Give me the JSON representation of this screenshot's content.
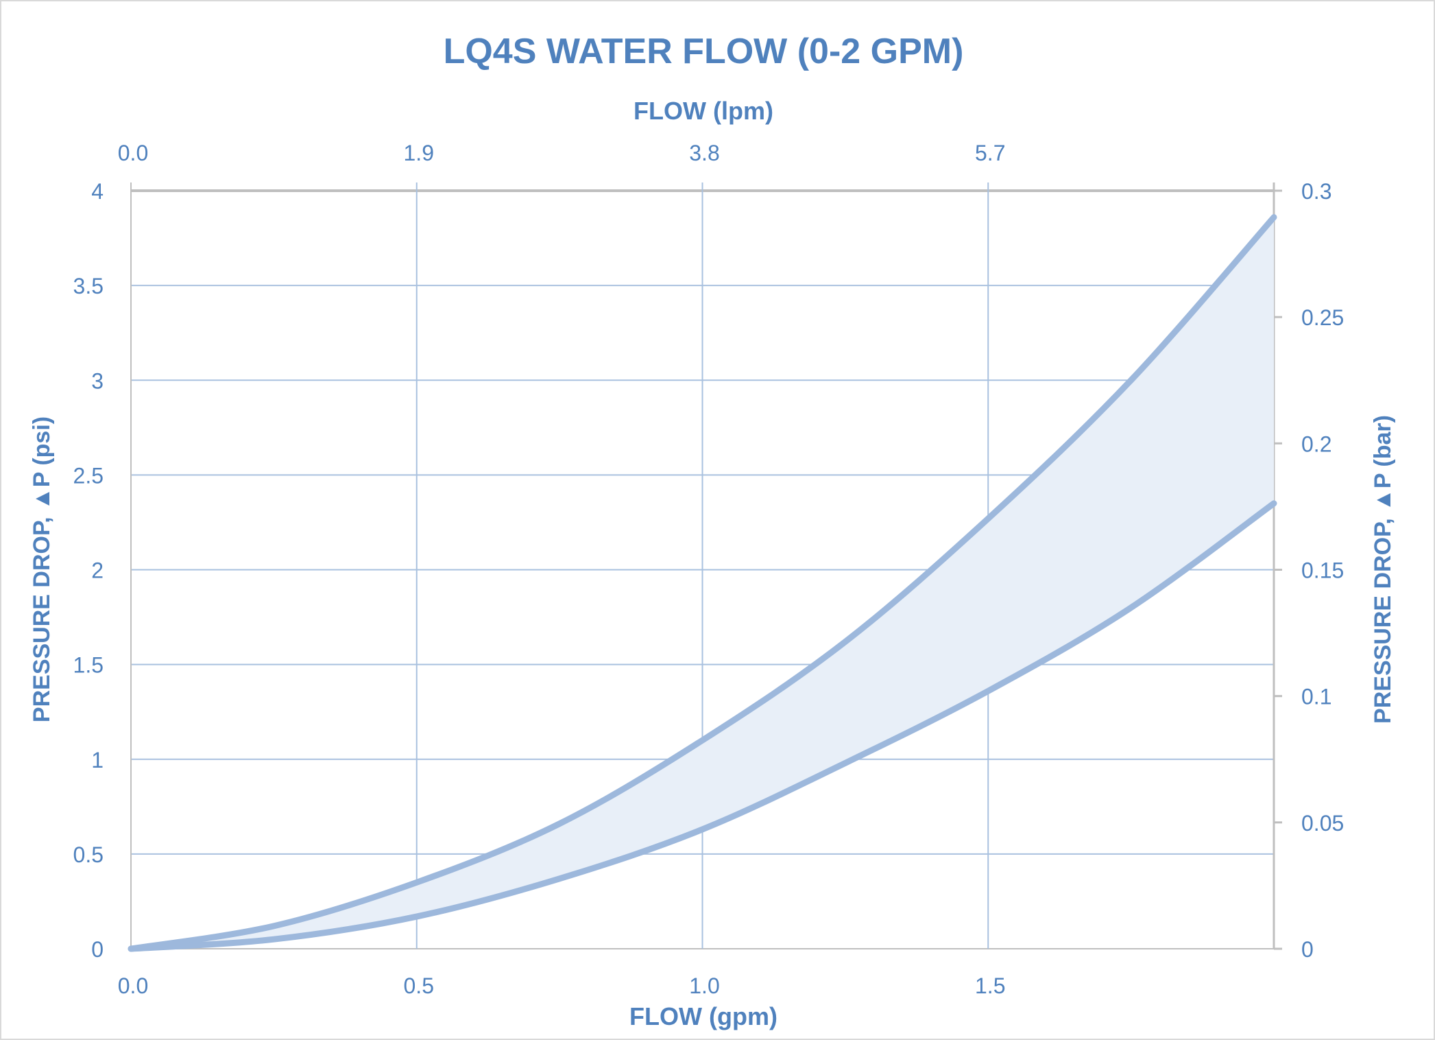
{
  "chart_data": {
    "type": "area",
    "title": "LQ4S WATER FLOW (0-2 GPM)",
    "xlabel": "FLOW (gpm)",
    "x2label": "FLOW (lpm)",
    "ylabel": "PRESSURE DROP, ▲P (psi)",
    "y2label": "PRESSURE DROP, ▲P (bar)",
    "xlim": [
      0,
      2
    ],
    "ylim": [
      0,
      4
    ],
    "y2lim": [
      0,
      0.3
    ],
    "x_ticks": [
      "0.0",
      "0.5",
      "1.0",
      "1.5"
    ],
    "x_tick_values": [
      0,
      0.5,
      1.0,
      1.5
    ],
    "x2_ticks": [
      "0.0",
      "1.9",
      "3.8",
      "5.7"
    ],
    "y_ticks": [
      "0",
      "0.5",
      "1",
      "1.5",
      "2",
      "2.5",
      "3",
      "3.5",
      "4"
    ],
    "y2_ticks": [
      "0",
      "0.05",
      "0.1",
      "0.15",
      "0.2",
      "0.25",
      "0.3"
    ],
    "grid": true,
    "x": [
      0,
      0.25,
      0.5,
      0.75,
      1.0,
      1.25,
      1.5,
      1.75,
      2.0
    ],
    "series": [
      {
        "values": [
          0,
          0.12,
          0.35,
          0.66,
          1.1,
          1.62,
          2.27,
          3.0,
          3.86
        ]
      },
      {
        "values": [
          0,
          0.05,
          0.17,
          0.37,
          0.63,
          0.98,
          1.36,
          1.8,
          2.35
        ]
      }
    ],
    "colors": {
      "text": "#4f81bd",
      "line": "#9db8dc",
      "fill": "#e8eff8",
      "grid": "#a9c1df",
      "axis": "#bfbfbf"
    }
  }
}
